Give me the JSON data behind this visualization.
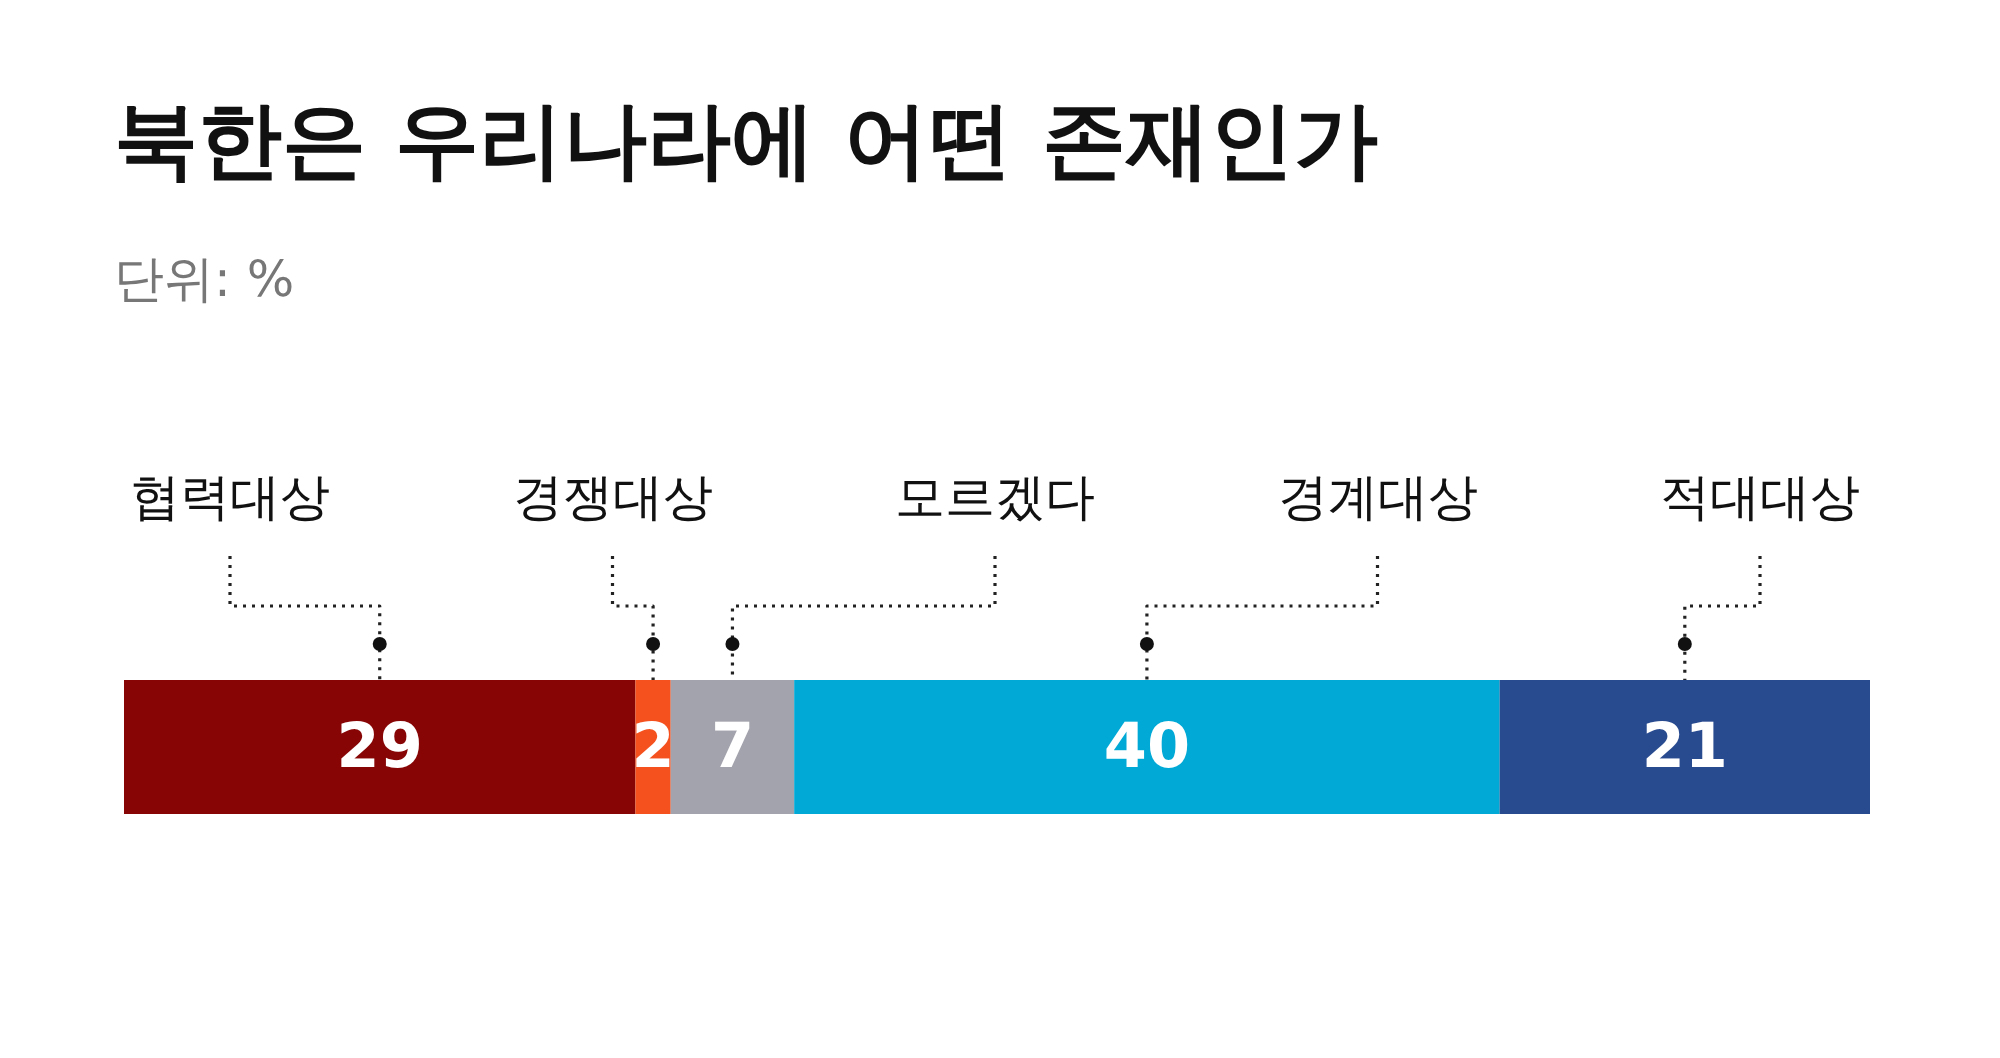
{
  "chart_data": {
    "type": "bar",
    "title": "북한은 우리나라에 어떤 존재인가",
    "subtitle": "단위: %",
    "orientation": "horizontal",
    "stacked": true,
    "categories": [
      null
    ],
    "data_labels": true,
    "tick_labels": false,
    "series": [
      {
        "name": "협력대상",
        "color": "#870505",
        "values": [
          29
        ]
      },
      {
        "name": "경쟁대상",
        "color": "#f4511e",
        "values": [
          2
        ]
      },
      {
        "name": "모르겠다",
        "color": "#a3a3ad",
        "values": [
          7
        ]
      },
      {
        "name": "경계대상",
        "color": "#00a9d6",
        "values": [
          40
        ]
      },
      {
        "name": "적대대상",
        "color": "#284a8f",
        "values": [
          21
        ]
      }
    ]
  }
}
